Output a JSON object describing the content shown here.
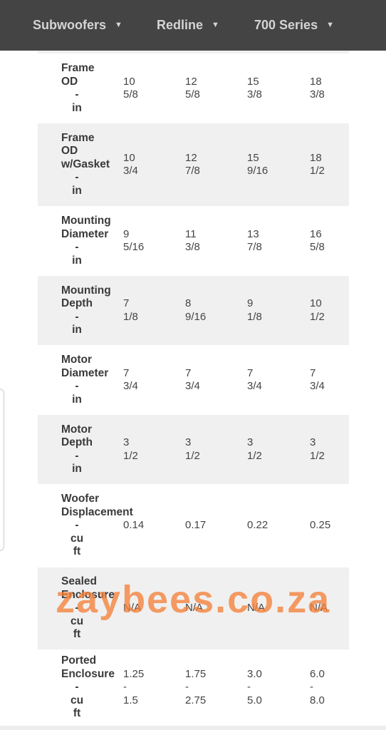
{
  "nav": {
    "items": [
      {
        "label": "Subwoofers"
      },
      {
        "label": "Redline"
      },
      {
        "label": "700 Series"
      }
    ]
  },
  "watermark": "zaybees.co.za",
  "rows": [
    {
      "label_lines": [
        "Frame",
        "OD"
      ],
      "unit_lines": [
        "-",
        "in"
      ],
      "values": [
        [
          "10",
          "5/8"
        ],
        [
          "12",
          "5/8"
        ],
        [
          "15",
          "3/8"
        ],
        [
          "18",
          "3/8"
        ]
      ]
    },
    {
      "label_lines": [
        "Frame",
        "OD",
        "w/Gasket"
      ],
      "unit_lines": [
        "-",
        "in"
      ],
      "values": [
        [
          "10",
          "3/4"
        ],
        [
          "12",
          "7/8"
        ],
        [
          "15",
          "9/16"
        ],
        [
          "18",
          "1/2"
        ]
      ]
    },
    {
      "label_lines": [
        "Mounting",
        "Diameter"
      ],
      "unit_lines": [
        "-",
        "in"
      ],
      "values": [
        [
          "9",
          "5/16"
        ],
        [
          "11",
          "3/8"
        ],
        [
          "13",
          "7/8"
        ],
        [
          "16",
          "5/8"
        ]
      ]
    },
    {
      "label_lines": [
        "Mounting",
        "Depth"
      ],
      "unit_lines": [
        "-",
        "in"
      ],
      "values": [
        [
          "7",
          "1/8"
        ],
        [
          "8",
          "9/16"
        ],
        [
          "9",
          "1/8"
        ],
        [
          "10",
          "1/2"
        ]
      ]
    },
    {
      "label_lines": [
        "Motor",
        "Diameter"
      ],
      "unit_lines": [
        "-",
        "in"
      ],
      "values": [
        [
          "7",
          "3/4"
        ],
        [
          "7",
          "3/4"
        ],
        [
          "7",
          "3/4"
        ],
        [
          "7",
          "3/4"
        ]
      ]
    },
    {
      "label_lines": [
        "Motor",
        "Depth"
      ],
      "unit_lines": [
        "-",
        "in"
      ],
      "values": [
        [
          "3",
          "1/2"
        ],
        [
          "3",
          "1/2"
        ],
        [
          "3",
          "1/2"
        ],
        [
          "3",
          "1/2"
        ]
      ]
    },
    {
      "label_lines": [
        "Woofer",
        "Displacement"
      ],
      "unit_lines": [
        "-",
        "cu",
        "ft"
      ],
      "values": [
        [
          "0.14"
        ],
        [
          "0.17"
        ],
        [
          "0.22"
        ],
        [
          "0.25"
        ]
      ]
    },
    {
      "label_lines": [
        "Sealed",
        "Enclosure"
      ],
      "unit_lines": [
        "-",
        "cu",
        "ft"
      ],
      "values": [
        [
          "N/A"
        ],
        [
          "N/A"
        ],
        [
          "N/A"
        ],
        [
          "N/A"
        ]
      ]
    },
    {
      "label_lines": [
        "Ported",
        "Enclosure"
      ],
      "unit_lines": [
        "-",
        "cu",
        "ft"
      ],
      "values": [
        [
          "1.25",
          "-",
          "1.5"
        ],
        [
          "1.75",
          "-",
          "2.75"
        ],
        [
          "3.0",
          "-",
          "5.0"
        ],
        [
          "6.0",
          "-",
          "8.0"
        ]
      ]
    }
  ]
}
